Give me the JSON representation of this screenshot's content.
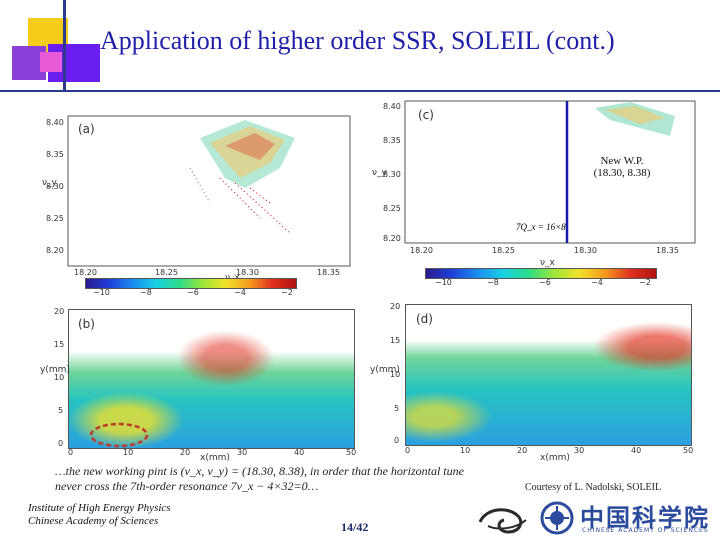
{
  "slide": {
    "title": "Application of higher order SSR, SOLEIL (cont.)",
    "page_number": "14/42"
  },
  "panels": {
    "a": {
      "label": "(a)",
      "ylabel": "ν_y",
      "xlabel": "ν_x",
      "yticks": [
        "8.40",
        "8.35",
        "8.30",
        "8.25",
        "8.20"
      ],
      "xticks": [
        "18.20",
        "18.25",
        "18.30",
        "18.35"
      ],
      "colorbar_ticks": [
        "−10",
        "−8",
        "−6",
        "−4",
        "−2"
      ]
    },
    "c": {
      "label": "(c)",
      "ylabel": "ν_y",
      "xlabel": "ν_x",
      "yticks": [
        "8.40",
        "8.35",
        "8.30",
        "8.25",
        "8.20"
      ],
      "xticks": [
        "18.20",
        "18.25",
        "18.30",
        "18.35"
      ],
      "colorbar_ticks": [
        "−10",
        "−8",
        "−6",
        "−4",
        "−2"
      ],
      "resonance_label": "7Q_x = 16×8",
      "working_point_label": "New W.P.",
      "working_point_value": "(18.30, 8.38)"
    },
    "b": {
      "label": "(b)",
      "ylabel": "y(mm)",
      "xlabel": "x(mm)",
      "yticks": [
        "20",
        "15",
        "10",
        "5",
        "0"
      ],
      "xticks": [
        "0",
        "10",
        "20",
        "30",
        "40",
        "50"
      ]
    },
    "d": {
      "label": "(d)",
      "ylabel": "y(mm)",
      "xlabel": "x(mm)",
      "yticks": [
        "20",
        "15",
        "10",
        "5",
        "0"
      ],
      "xticks": [
        "0",
        "10",
        "20",
        "30",
        "40",
        "50"
      ]
    }
  },
  "caption": {
    "line1": "…the new working pint is (ν_x, ν_y) = (18.30, 8.38), in order that the horizontal tune",
    "line2": "never cross the 7th-order resonance 7ν_x − 4×32=0…"
  },
  "courtesy": "Courtesy of  L. Nadolski, SOLEIL",
  "institute": {
    "line1": "Institute of High Energy Physics",
    "line2": "Chinese Academy of Sciences"
  },
  "logos": {
    "cas_text_cn": "中国科学院",
    "cas_text_en": "CHINESE ACADEMY OF SCIENCES"
  },
  "colors": {
    "title": "#1f1fa8",
    "accent_line": "#2b3a8c",
    "yellow_square": "#f5cc1a",
    "violet_square": "#6a1ef0",
    "highlight_red": "#e0301e"
  }
}
